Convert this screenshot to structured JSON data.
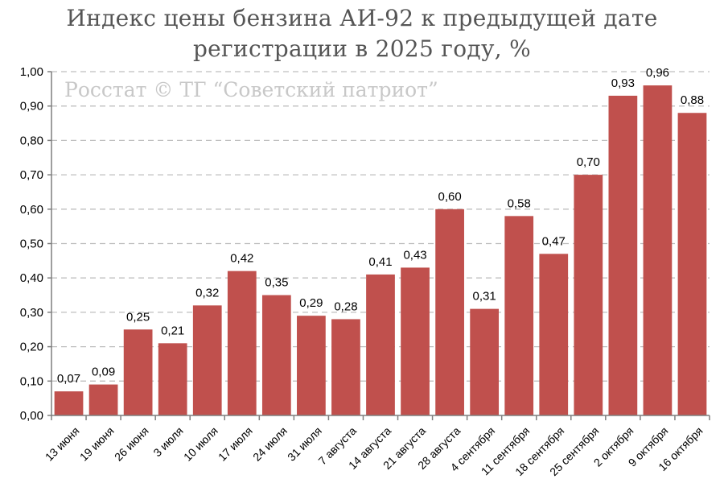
{
  "chart_data": {
    "type": "bar",
    "title_lines": [
      "Индекс цены бензина АИ-92 к предыдущей дате",
      "регистрации в 2025 году, %"
    ],
    "watermark": "Росстат © ТГ “Советский патриот”",
    "categories": [
      "13 июня",
      "19 июня",
      "26 июня",
      "3 июля",
      "10 июля",
      "17 июля",
      "24 июля",
      "31 июля",
      "7 августа",
      "14 августа",
      "21 августа",
      "28 августа",
      "4 сентября",
      "11 сентября",
      "18 сентября",
      "25 сентября",
      "2 октября",
      "9 октября",
      "16 октября"
    ],
    "values": [
      0.07,
      0.09,
      0.25,
      0.21,
      0.32,
      0.42,
      0.35,
      0.29,
      0.28,
      0.41,
      0.43,
      0.6,
      0.31,
      0.58,
      0.47,
      0.7,
      0.93,
      0.96,
      0.88
    ],
    "value_labels": [
      "0,07",
      "0,09",
      "0,25",
      "0,21",
      "0,32",
      "0,42",
      "0,35",
      "0,29",
      "0,28",
      "0,41",
      "0,43",
      "0,60",
      "0,31",
      "0,58",
      "0,47",
      "0,70",
      "0,93",
      "0,96",
      "0,88"
    ],
    "yticks": [
      "0,00",
      "0,10",
      "0,20",
      "0,30",
      "0,40",
      "0,50",
      "0,60",
      "0,70",
      "0,80",
      "0,90",
      "1,00"
    ],
    "ylim": [
      0,
      1.0
    ],
    "xlabel": "",
    "ylabel": "",
    "grid": true,
    "legend": "none",
    "colors": {
      "bar": "#c0504d",
      "grid": "#bfbfbf",
      "axis": "#7f7f7f",
      "title": "#555555",
      "watermark": "#c8c8c8",
      "text": "#000000"
    }
  }
}
